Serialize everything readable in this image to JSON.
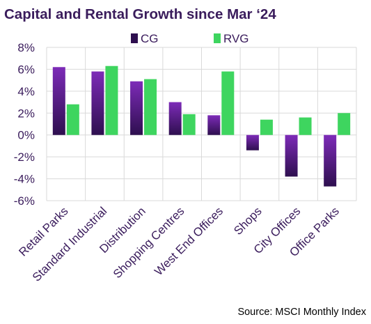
{
  "chart_data": {
    "type": "bar",
    "title": "Capital and Rental Growth since Mar ‘24",
    "categories": [
      "Retail Parks",
      "Standard Industrial",
      "Distribution",
      "Shopping Centres",
      "West End Offices",
      "Shops",
      "City Offices",
      "Office Parks"
    ],
    "series": [
      {
        "name": "CG",
        "values": [
          6.2,
          5.8,
          4.9,
          3.0,
          1.8,
          -1.4,
          -3.8,
          -4.7
        ]
      },
      {
        "name": "RVG",
        "values": [
          2.8,
          6.3,
          5.1,
          1.9,
          5.8,
          1.4,
          1.6,
          2.0
        ]
      }
    ],
    "ylim": [
      -6,
      8
    ],
    "yticks": [
      8,
      6,
      4,
      2,
      0,
      -2,
      -4,
      -6
    ],
    "ytick_labels": [
      "8%",
      "6%",
      "4%",
      "2%",
      "0%",
      "-2%",
      "-4%",
      "-6%"
    ],
    "grid": true,
    "legend_position": "top-center",
    "source": "Source: MSCI Monthly Index"
  },
  "colors": {
    "cg_dark": "#2e0f4f",
    "cg_light": "#7d2bb8",
    "rvg": "#3ed55f",
    "text": "#3a1c5c",
    "grid": "#d9d9d9"
  }
}
